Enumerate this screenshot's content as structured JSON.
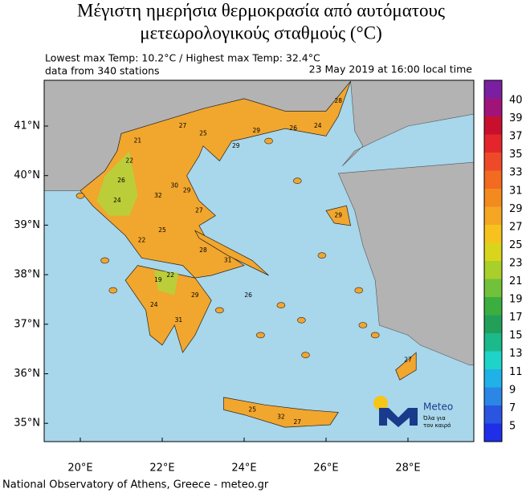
{
  "title": {
    "line1": "Μέγιστη ημερήσια θερμοκρασία από αυτόματους",
    "line2": "μετεωρολογικούς σταθμούς (°C)"
  },
  "info": {
    "extremes": "Lowest max Temp: 10.2°C / Highest max Temp: 32.4°C",
    "stations": "data from 340 stations",
    "time": "23 May 2019 at 16:00 local time"
  },
  "lat_labels": [
    "41°N",
    "40°N",
    "39°N",
    "38°N",
    "37°N",
    "36°N",
    "35°N"
  ],
  "lon_labels": [
    "20°E",
    "22°E",
    "24°E",
    "26°E",
    "28°E"
  ],
  "colorbar_labels": [
    40,
    39,
    37,
    35,
    33,
    31,
    29,
    27,
    25,
    23,
    21,
    19,
    17,
    15,
    13,
    11,
    9,
    7,
    5
  ],
  "station_values": [
    29,
    27,
    21,
    25,
    26,
    24,
    28,
    29,
    22,
    26,
    24,
    30,
    32,
    29,
    27,
    25,
    22,
    28,
    31,
    19,
    22,
    24,
    31,
    29,
    25,
    32,
    27,
    27,
    29,
    26
  ],
  "logo": {
    "name": "Meteo",
    "slogan1": "Όλα για",
    "slogan2": "τον καιρό"
  },
  "footer": "National Observatory of Athens, Greece - meteo.gr"
}
